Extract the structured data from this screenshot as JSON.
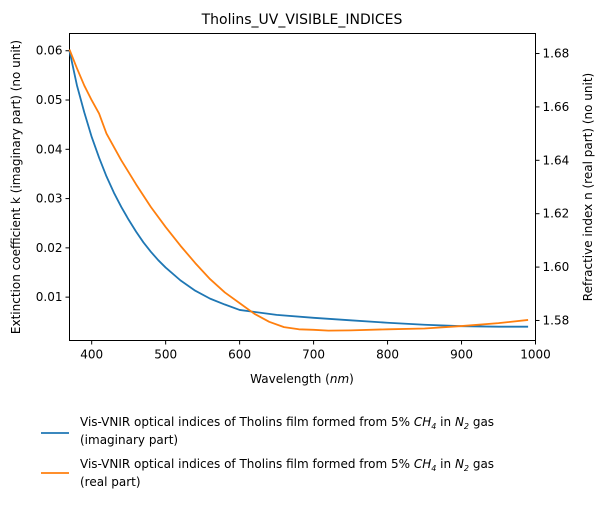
{
  "chart_data": {
    "type": "line",
    "title": "Tholins_UV_VISIBLE_INDICES",
    "xlabel": "Wavelength",
    "xlabel_unit": "nm",
    "ylabel_left": "Extinction coefficient k (imaginary part) (no unit)",
    "ylabel_right": "Refractive index n (real part) (no unit)",
    "xlim": [
      370,
      1000
    ],
    "ylim_left": [
      0.0012,
      0.0635
    ],
    "ylim_right": [
      1.5725,
      1.6875
    ],
    "x_ticks": [
      400,
      500,
      600,
      700,
      800,
      900,
      1000
    ],
    "x_tick_labels": [
      "400",
      "500",
      "600",
      "700",
      "800",
      "900",
      "1000"
    ],
    "y_left_ticks": [
      0.01,
      0.02,
      0.03,
      0.04,
      0.05,
      0.06
    ],
    "y_left_tick_labels": [
      "0.01",
      "0.02",
      "0.03",
      "0.04",
      "0.05",
      "0.06"
    ],
    "y_right_ticks": [
      1.58,
      1.6,
      1.62,
      1.64,
      1.66,
      1.68
    ],
    "y_right_tick_labels": [
      "1.58",
      "1.60",
      "1.62",
      "1.64",
      "1.66",
      "1.68"
    ],
    "grid": false,
    "legend_position": "bottom",
    "series": [
      {
        "name": "Vis-VNIR optical indices of Tholins film formed from 5% CH4 in N2 gas (imaginary part)",
        "legend_line1_prefix": "Vis-VNIR optical indices of Tholins film formed from 5% ",
        "legend_line1_ch": "CH",
        "legend_line1_ch_sub": "4",
        "legend_line1_mid": " in ",
        "legend_line1_n": "N",
        "legend_line1_n_sub": "2",
        "legend_line1_suffix": " gas",
        "legend_line2": "(imaginary part)",
        "axis": "left",
        "color": "#1f77b4",
        "x": [
          370,
          380,
          390,
          400,
          410,
          420,
          430,
          440,
          450,
          460,
          470,
          480,
          490,
          500,
          520,
          540,
          560,
          580,
          600,
          650,
          700,
          750,
          800,
          850,
          900,
          950,
          990
        ],
        "y": [
          0.06,
          0.053,
          0.0475,
          0.0425,
          0.0383,
          0.0345,
          0.0312,
          0.0283,
          0.0257,
          0.0233,
          0.0211,
          0.0192,
          0.0175,
          0.016,
          0.0134,
          0.0113,
          0.0097,
          0.0085,
          0.0074,
          0.0064,
          0.0058,
          0.0053,
          0.0048,
          0.0044,
          0.0041,
          0.004,
          0.004
        ]
      },
      {
        "name": "Vis-VNIR optical indices of Tholins film formed from 5% CH4 in N2 gas (real part)",
        "legend_line1_prefix": "Vis-VNIR optical indices of Tholins film formed from 5% ",
        "legend_line1_ch": "CH",
        "legend_line1_ch_sub": "4",
        "legend_line1_mid": " in ",
        "legend_line1_n": "N",
        "legend_line1_n_sub": "2",
        "legend_line1_suffix": " gas",
        "legend_line2": "(real part)",
        "axis": "right",
        "color": "#ff7f0e",
        "x": [
          370,
          380,
          390,
          400,
          410,
          420,
          440,
          460,
          480,
          500,
          520,
          540,
          560,
          580,
          600,
          620,
          640,
          660,
          680,
          700,
          720,
          750,
          800,
          850,
          900,
          950,
          990
        ],
        "y": [
          1.6815,
          1.6745,
          1.668,
          1.6625,
          1.6575,
          1.65,
          1.64,
          1.631,
          1.6225,
          1.615,
          1.608,
          1.6015,
          1.5955,
          1.5905,
          1.5865,
          1.5825,
          1.5795,
          1.5775,
          1.5767,
          1.5765,
          1.5762,
          1.5763,
          1.5767,
          1.577,
          1.5779,
          1.579,
          1.5802
        ]
      }
    ]
  }
}
